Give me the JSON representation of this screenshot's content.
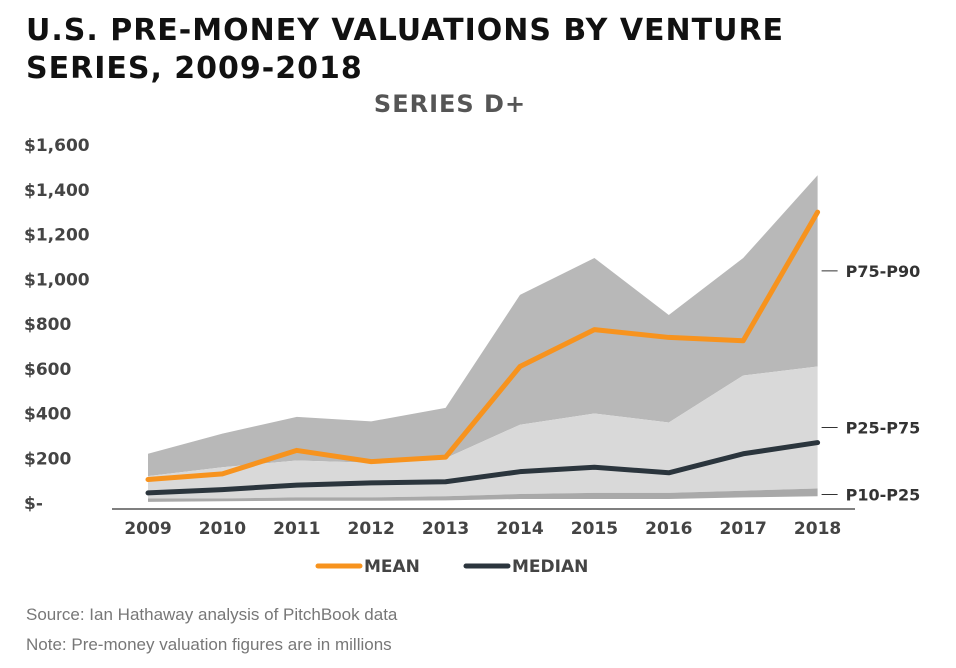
{
  "title_line1": "U.S. PRE-MONEY VALUATIONS BY VENTURE",
  "title_line2": "SERIES, 2009-2018",
  "subtitle": "SERIES D+",
  "source": "Source: Ian Hathaway analysis of PitchBook data",
  "note": "Note: Pre-money valuation figures are in millions",
  "chart_data": {
    "type": "area",
    "categories": [
      "2009",
      "2010",
      "2011",
      "2012",
      "2013",
      "2014",
      "2015",
      "2016",
      "2017",
      "2018"
    ],
    "ylim": [
      0,
      1600
    ],
    "yticks": [
      0,
      200,
      400,
      600,
      800,
      1000,
      1200,
      1400,
      1600
    ],
    "ytick_labels": [
      "$-",
      "$200",
      "$400",
      "$600",
      "$800",
      "$1,000",
      "$1,200",
      "$1,400",
      "$1,600"
    ],
    "bands": [
      {
        "name": "P75-P90",
        "lower": [
          120,
          160,
          190,
          180,
          200,
          350,
          400,
          360,
          570,
          610
        ],
        "upper": [
          220,
          310,
          385,
          365,
          425,
          930,
          1095,
          840,
          1095,
          1465
        ],
        "color": "#b8b8b8"
      },
      {
        "name": "P25-P75",
        "lower": [
          20,
          20,
          25,
          25,
          30,
          40,
          45,
          45,
          55,
          65
        ],
        "upper": [
          120,
          160,
          190,
          180,
          200,
          350,
          400,
          360,
          570,
          610
        ],
        "color": "#d9d9d9"
      },
      {
        "name": "P10-P25",
        "lower": [
          5,
          8,
          10,
          10,
          12,
          18,
          18,
          18,
          25,
          30
        ],
        "upper": [
          20,
          20,
          25,
          25,
          30,
          40,
          45,
          45,
          55,
          65
        ],
        "color": "#a9a9a9"
      }
    ],
    "series": [
      {
        "name": "MEAN",
        "values": [
          105,
          130,
          235,
          185,
          205,
          610,
          775,
          740,
          725,
          1300
        ],
        "color": "#f7931e"
      },
      {
        "name": "MEDIAN",
        "values": [
          45,
          60,
          80,
          90,
          95,
          140,
          160,
          135,
          220,
          270
        ],
        "color": "#2b353d"
      }
    ],
    "legend_position": "bottom"
  }
}
